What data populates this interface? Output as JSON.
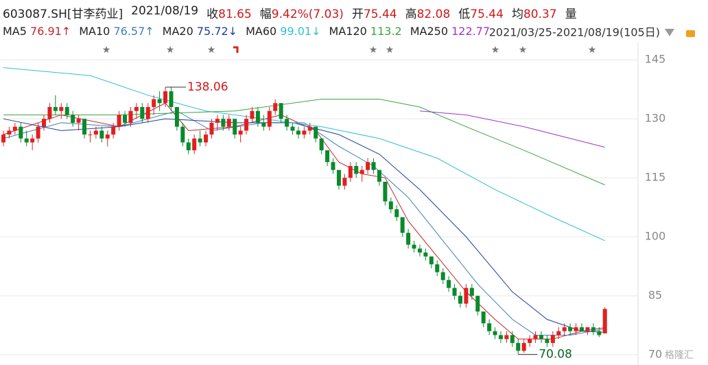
{
  "header": {
    "symbol": "603087.SH[甘李药业]",
    "date": "2021/08/19",
    "items": [
      {
        "label": "收",
        "value": "81.65"
      },
      {
        "label": "幅",
        "value": "9.42%(7.03)"
      },
      {
        "label": "开",
        "value": "75.44"
      },
      {
        "label": "高",
        "value": "82.08"
      },
      {
        "label": "低",
        "value": "75.44"
      },
      {
        "label": "均",
        "value": "80.37"
      },
      {
        "label": "量",
        "value": ""
      }
    ]
  },
  "ma_header": [
    {
      "name": "MA5",
      "value": "76.91↑",
      "color": "#c0252b"
    },
    {
      "name": "MA10",
      "value": "76.57↑",
      "color": "#3c7fb8"
    },
    {
      "name": "MA20",
      "value": "75.72↓",
      "color": "#1f3f9a"
    },
    {
      "name": "MA60",
      "value": "99.01↓",
      "color": "#2fbfd0"
    },
    {
      "name": "MA120",
      "value": "113.2",
      "color": "#3aa640"
    },
    {
      "name": "MA250",
      "value": "122.77",
      "color": "#a032c8"
    }
  ],
  "range": "2021/03/25-2021/08/19(105日)",
  "watermark": "格隆汇",
  "chart_data": {
    "type": "candlestick",
    "ylim": [
      67.4,
      149.4
    ],
    "yticks": [
      145,
      130,
      115,
      100,
      85,
      70
    ],
    "grid": true,
    "up_color": "#e02020",
    "down_color": "#0a8a2c",
    "ohlc": [
      [
        124,
        127,
        123,
        126
      ],
      [
        126,
        128,
        125,
        127
      ],
      [
        127,
        129,
        126,
        128
      ],
      [
        128,
        129,
        124,
        125
      ],
      [
        125,
        127,
        123,
        124
      ],
      [
        124,
        126,
        122,
        125
      ],
      [
        125,
        129,
        124,
        128
      ],
      [
        128,
        131,
        127,
        130
      ],
      [
        130,
        134,
        129,
        133
      ],
      [
        133,
        136,
        131,
        132
      ],
      [
        132,
        134,
        130,
        133
      ],
      [
        133,
        134,
        130,
        131
      ],
      [
        131,
        132,
        128,
        129
      ],
      [
        129,
        131,
        127,
        130
      ],
      [
        130,
        130,
        125,
        126
      ],
      [
        126,
        127,
        124,
        126
      ],
      [
        126,
        128,
        125,
        127
      ],
      [
        127,
        128,
        124,
        125
      ],
      [
        125,
        127,
        123,
        126
      ],
      [
        126,
        129,
        125,
        128
      ],
      [
        128,
        132,
        127,
        131
      ],
      [
        131,
        132,
        128,
        129
      ],
      [
        129,
        133,
        128,
        132
      ],
      [
        132,
        134,
        130,
        133
      ],
      [
        133,
        134,
        129,
        130
      ],
      [
        130,
        134,
        129,
        133
      ],
      [
        133,
        136,
        131,
        135
      ],
      [
        135,
        137,
        132,
        134
      ],
      [
        134,
        138.06,
        133,
        137
      ],
      [
        137,
        138,
        132,
        133
      ],
      [
        133,
        133,
        127,
        128
      ],
      [
        128,
        129,
        123,
        124
      ],
      [
        124,
        125,
        121,
        122
      ],
      [
        122,
        126,
        121,
        125
      ],
      [
        125,
        127,
        123,
        124
      ],
      [
        124,
        127,
        123,
        126
      ],
      [
        126,
        130,
        125,
        129
      ],
      [
        129,
        131,
        127,
        130
      ],
      [
        130,
        131,
        127,
        128
      ],
      [
        128,
        131,
        127,
        130
      ],
      [
        130,
        130,
        125,
        126
      ],
      [
        126,
        128,
        124,
        127
      ],
      [
        127,
        131,
        126,
        130
      ],
      [
        130,
        133,
        129,
        132
      ],
      [
        132,
        133,
        128,
        129
      ],
      [
        129,
        131,
        127,
        128
      ],
      [
        128,
        133,
        127,
        132
      ],
      [
        132,
        135,
        131,
        134
      ],
      [
        134,
        134,
        129,
        130
      ],
      [
        130,
        131,
        127,
        128
      ],
      [
        128,
        129,
        126,
        127
      ],
      [
        127,
        128,
        125,
        126
      ],
      [
        126,
        128,
        125,
        127
      ],
      [
        127,
        129,
        126,
        128
      ],
      [
        128,
        128,
        124,
        125
      ],
      [
        125,
        125,
        121,
        122
      ],
      [
        122,
        122,
        118,
        119
      ],
      [
        119,
        120,
        116,
        117
      ],
      [
        117,
        117,
        112,
        113
      ],
      [
        113,
        116,
        112,
        115
      ],
      [
        115,
        119,
        114,
        118
      ],
      [
        118,
        119,
        115,
        116
      ],
      [
        116,
        118,
        114,
        117
      ],
      [
        117,
        120,
        116,
        119
      ],
      [
        119,
        120,
        116,
        117
      ],
      [
        117,
        117,
        113,
        114
      ],
      [
        114,
        114,
        108,
        109
      ],
      [
        109,
        110,
        106,
        107
      ],
      [
        107,
        108,
        104,
        105
      ],
      [
        105,
        105,
        100,
        101
      ],
      [
        101,
        102,
        97,
        98
      ],
      [
        98,
        99,
        96,
        97
      ],
      [
        97,
        98,
        95,
        96
      ],
      [
        96,
        97,
        94,
        95
      ],
      [
        95,
        95,
        92,
        93
      ],
      [
        93,
        94,
        90,
        91
      ],
      [
        91,
        92,
        88,
        89
      ],
      [
        89,
        90,
        86,
        87
      ],
      [
        87,
        88,
        84,
        85
      ],
      [
        85,
        86,
        82,
        83
      ],
      [
        83,
        88,
        82,
        87
      ],
      [
        87,
        88,
        84,
        85
      ],
      [
        85,
        85,
        80,
        81
      ],
      [
        81,
        81,
        77,
        78
      ],
      [
        78,
        79,
        75,
        76
      ],
      [
        76,
        77,
        74,
        75
      ],
      [
        75,
        76,
        73,
        74
      ],
      [
        74,
        76,
        73,
        75
      ],
      [
        75,
        76,
        72,
        73
      ],
      [
        73,
        74,
        70.08,
        71
      ],
      [
        71,
        74,
        70.5,
        73
      ],
      [
        73,
        75,
        72,
        74
      ],
      [
        74,
        76,
        73,
        75
      ],
      [
        75,
        76,
        73,
        74
      ],
      [
        74,
        75,
        72,
        73
      ],
      [
        73,
        76,
        72,
        75
      ],
      [
        75,
        77,
        74,
        76
      ],
      [
        76,
        78,
        75,
        77
      ],
      [
        77,
        78,
        75,
        76
      ],
      [
        76,
        78,
        75,
        77
      ],
      [
        77,
        78,
        76,
        76
      ],
      [
        76,
        77,
        75,
        77
      ],
      [
        77,
        78,
        75,
        76
      ],
      [
        76,
        77,
        74.5,
        75
      ],
      [
        75.44,
        82.08,
        75.44,
        81.65
      ]
    ],
    "series": [
      {
        "name": "MA5",
        "color": "#c0252b",
        "x": [
          0,
          10,
          20,
          28,
          32,
          40,
          48,
          54,
          58,
          62,
          66,
          70,
          75,
          80,
          85,
          89,
          95,
          100,
          104
        ],
        "values": [
          126,
          131,
          128,
          134,
          127,
          128,
          131,
          127,
          119,
          116,
          115,
          104,
          95,
          86,
          79,
          74,
          74,
          76,
          76.91
        ]
      },
      {
        "name": "MA10",
        "color": "#3c7fb8",
        "x": [
          0,
          10,
          20,
          30,
          36,
          45,
          52,
          58,
          64,
          70,
          76,
          82,
          88,
          92,
          98,
          104
        ],
        "values": [
          125,
          129,
          128,
          132,
          127,
          129,
          129,
          123,
          118,
          110,
          99,
          88,
          79,
          75,
          75,
          76.57
        ]
      },
      {
        "name": "MA20",
        "color": "#1f3f9a",
        "x": [
          0,
          10,
          20,
          28,
          40,
          50,
          58,
          65,
          72,
          80,
          88,
          94,
          100,
          104
        ],
        "values": [
          130,
          127,
          128,
          130,
          129,
          129,
          126,
          121,
          112,
          100,
          86,
          79,
          76,
          75.72
        ]
      },
      {
        "name": "MA60",
        "color": "#2fbfd0",
        "x": [
          0,
          15,
          25,
          35,
          45,
          55,
          65,
          75,
          85,
          95,
          104
        ],
        "values": [
          143,
          141,
          136,
          132,
          130,
          128,
          125,
          120,
          112,
          105,
          99.01
        ]
      },
      {
        "name": "MA120",
        "color": "#3aa640",
        "x": [
          0,
          20,
          40,
          55,
          65,
          72,
          80,
          90,
          104
        ],
        "values": [
          131,
          131,
          132,
          135,
          135,
          133,
          128,
          122,
          113.2
        ]
      },
      {
        "name": "MA250",
        "color": "#a032c8",
        "x": [
          72,
          80,
          90,
          104
        ],
        "values": [
          132,
          131,
          128,
          122.77
        ]
      }
    ],
    "annotations": [
      {
        "text": "138.06",
        "value": 138.06
      },
      {
        "text": "70.08",
        "value": 70.08
      }
    ]
  }
}
